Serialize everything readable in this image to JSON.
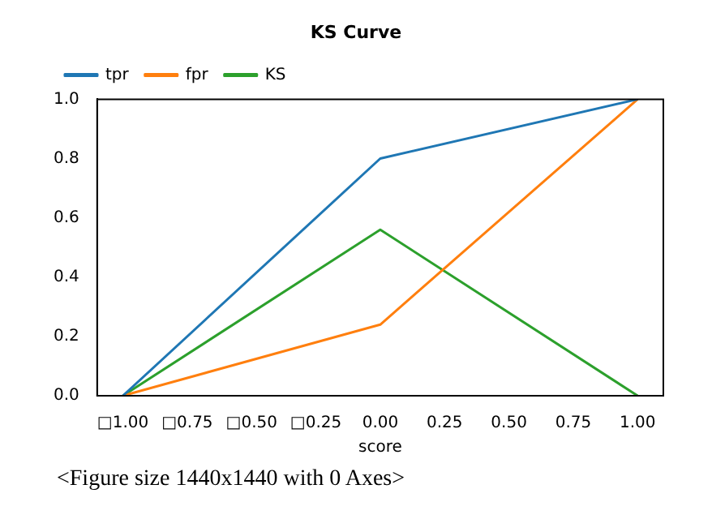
{
  "chart_data": {
    "type": "line",
    "title": "KS Curve",
    "xlabel": "score",
    "x": [
      -1,
      0,
      1
    ],
    "series": [
      {
        "name": "tpr",
        "color": "#1f77b4",
        "values": [
          0,
          0.8,
          1
        ]
      },
      {
        "name": "fpr",
        "color": "#ff7f0e",
        "values": [
          0,
          0.24,
          1
        ]
      },
      {
        "name": "KS",
        "color": "#2ca02c",
        "values": [
          0,
          0.56,
          0
        ]
      }
    ],
    "xlim": [
      -1.1,
      1.1
    ],
    "xticks": [
      {
        "value": -1,
        "label": "□1.00"
      },
      {
        "value": -0.75,
        "label": "□0.75"
      },
      {
        "value": -0.5,
        "label": "□0.50"
      },
      {
        "value": -0.25,
        "label": "□0.25"
      },
      {
        "value": 0,
        "label": "0.00"
      },
      {
        "value": 0.25,
        "label": "0.25"
      },
      {
        "value": 0.5,
        "label": "0.50"
      },
      {
        "value": 0.75,
        "label": "0.75"
      },
      {
        "value": 1,
        "label": "1.00"
      }
    ],
    "ylim": [
      0,
      1
    ],
    "yticks": [
      {
        "value": 0,
        "label": "0.0"
      },
      {
        "value": 0.2,
        "label": "0.2"
      },
      {
        "value": 0.4,
        "label": "0.4"
      },
      {
        "value": 0.6,
        "label": "0.6"
      },
      {
        "value": 0.8,
        "label": "0.8"
      },
      {
        "value": 1,
        "label": "1.0"
      }
    ],
    "legend": "top left",
    "grid": false,
    "marker": "none",
    "line_style": "solid",
    "annotations": [
      "<Figure size 1440x1440 with 0 Axes>"
    ]
  }
}
